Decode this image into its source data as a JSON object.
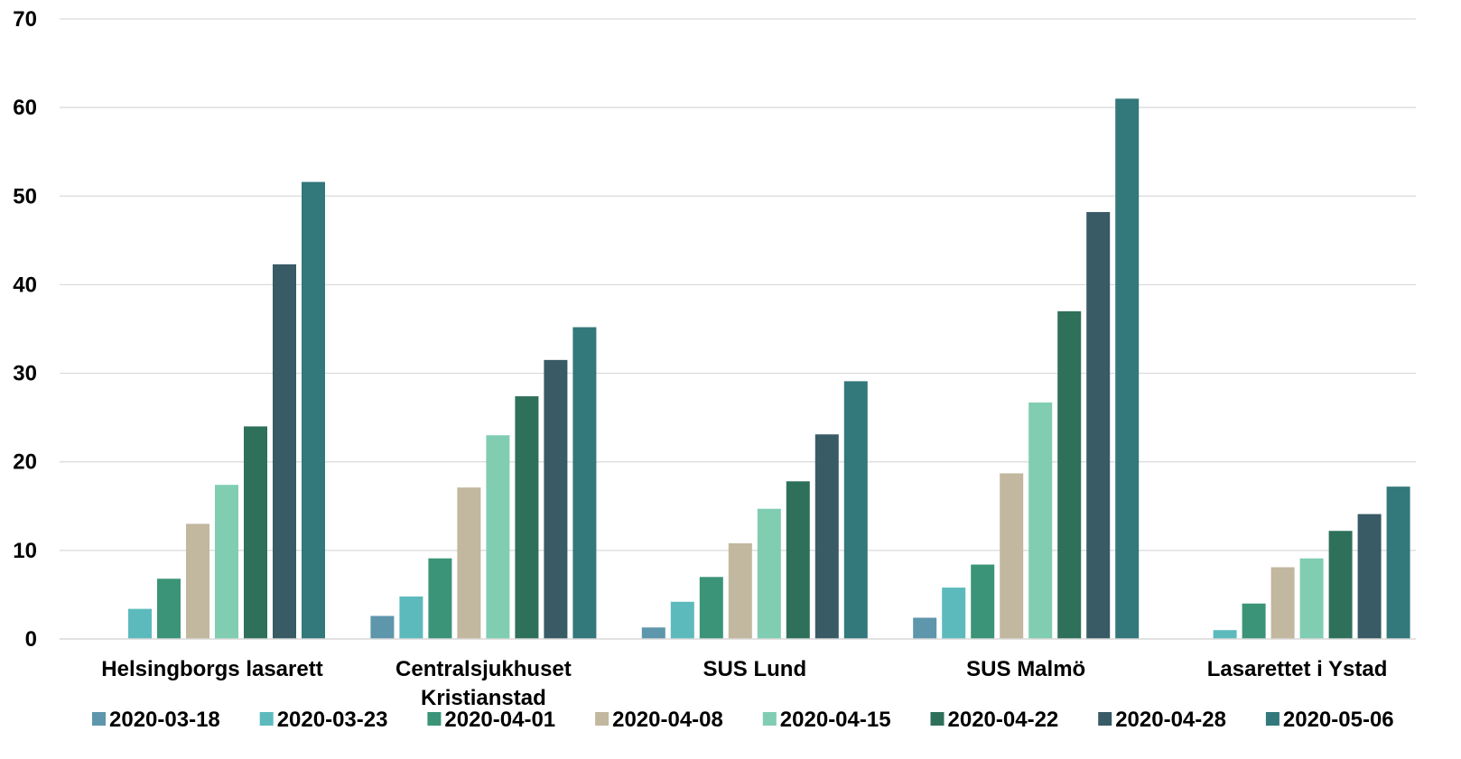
{
  "chart_data": {
    "type": "bar",
    "title": "",
    "xlabel": "",
    "ylabel": "",
    "ylim": [
      0,
      70
    ],
    "yticks": [
      0,
      10,
      20,
      30,
      40,
      50,
      60,
      70
    ],
    "grid": true,
    "legend_position": "bottom",
    "categories": [
      [
        "Helsingborgs lasarett"
      ],
      [
        "Centralsjukhuset",
        "Kristianstad"
      ],
      [
        "SUS Lund"
      ],
      [
        "SUS Malmö"
      ],
      [
        "Lasarettet i Ystad"
      ]
    ],
    "series": [
      {
        "name": "2020-03-18",
        "color": "#5e96ab",
        "values": [
          0,
          2.6,
          1.3,
          2.4,
          0
        ]
      },
      {
        "name": "2020-03-23",
        "color": "#5cbabd",
        "values": [
          3.4,
          4.8,
          4.2,
          5.8,
          1.0
        ]
      },
      {
        "name": "2020-04-01",
        "color": "#3b9477",
        "values": [
          6.8,
          9.1,
          7.0,
          8.4,
          4.0
        ]
      },
      {
        "name": "2020-04-08",
        "color": "#c2b79f",
        "values": [
          13.0,
          17.1,
          10.8,
          18.7,
          8.1
        ]
      },
      {
        "name": "2020-04-15",
        "color": "#80cdb2",
        "values": [
          17.4,
          23.0,
          14.7,
          26.7,
          9.1
        ]
      },
      {
        "name": "2020-04-22",
        "color": "#2e705a",
        "values": [
          24.0,
          27.4,
          17.8,
          37.0,
          12.2
        ]
      },
      {
        "name": "2020-04-28",
        "color": "#385b66",
        "values": [
          42.3,
          31.5,
          23.1,
          48.2,
          14.1
        ]
      },
      {
        "name": "2020-05-06",
        "color": "#33787a",
        "values": [
          51.6,
          35.2,
          29.1,
          61.0,
          17.2
        ]
      }
    ]
  }
}
